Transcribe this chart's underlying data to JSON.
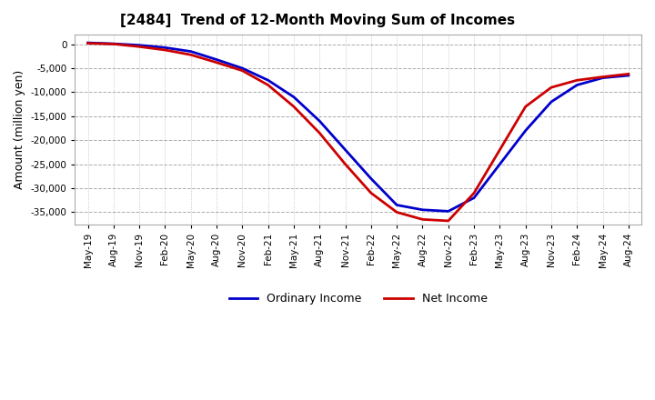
{
  "title": "[2484]  Trend of 12-Month Moving Sum of Incomes",
  "ylabel": "Amount (million yen)",
  "background_color": "#ffffff",
  "ordinary_income_color": "#0000cc",
  "net_income_color": "#cc0000",
  "ylim": [
    -37500,
    2000
  ],
  "yticks": [
    0,
    -5000,
    -10000,
    -15000,
    -20000,
    -25000,
    -30000,
    -35000
  ],
  "x_labels": [
    "May-19",
    "Aug-19",
    "Nov-19",
    "Feb-20",
    "May-20",
    "Aug-20",
    "Nov-20",
    "Feb-21",
    "May-21",
    "Aug-21",
    "Nov-21",
    "Feb-22",
    "May-22",
    "Aug-22",
    "Nov-22",
    "Feb-23",
    "May-23",
    "Aug-23",
    "Nov-23",
    "Feb-24",
    "May-24",
    "Aug-24"
  ],
  "ordinary_income": [
    300,
    100,
    -200,
    -700,
    -1500,
    -3200,
    -5000,
    -7500,
    -11000,
    -16000,
    -22000,
    -28000,
    -33500,
    -34500,
    -34800,
    -32000,
    -25000,
    -18000,
    -12000,
    -8500,
    -7000,
    -6500
  ],
  "net_income": [
    200,
    50,
    -500,
    -1200,
    -2200,
    -3800,
    -5500,
    -8500,
    -13000,
    -18500,
    -25000,
    -31000,
    -35000,
    -36500,
    -36800,
    -31000,
    -22000,
    -13000,
    -9000,
    -7500,
    -6800,
    -6200
  ]
}
